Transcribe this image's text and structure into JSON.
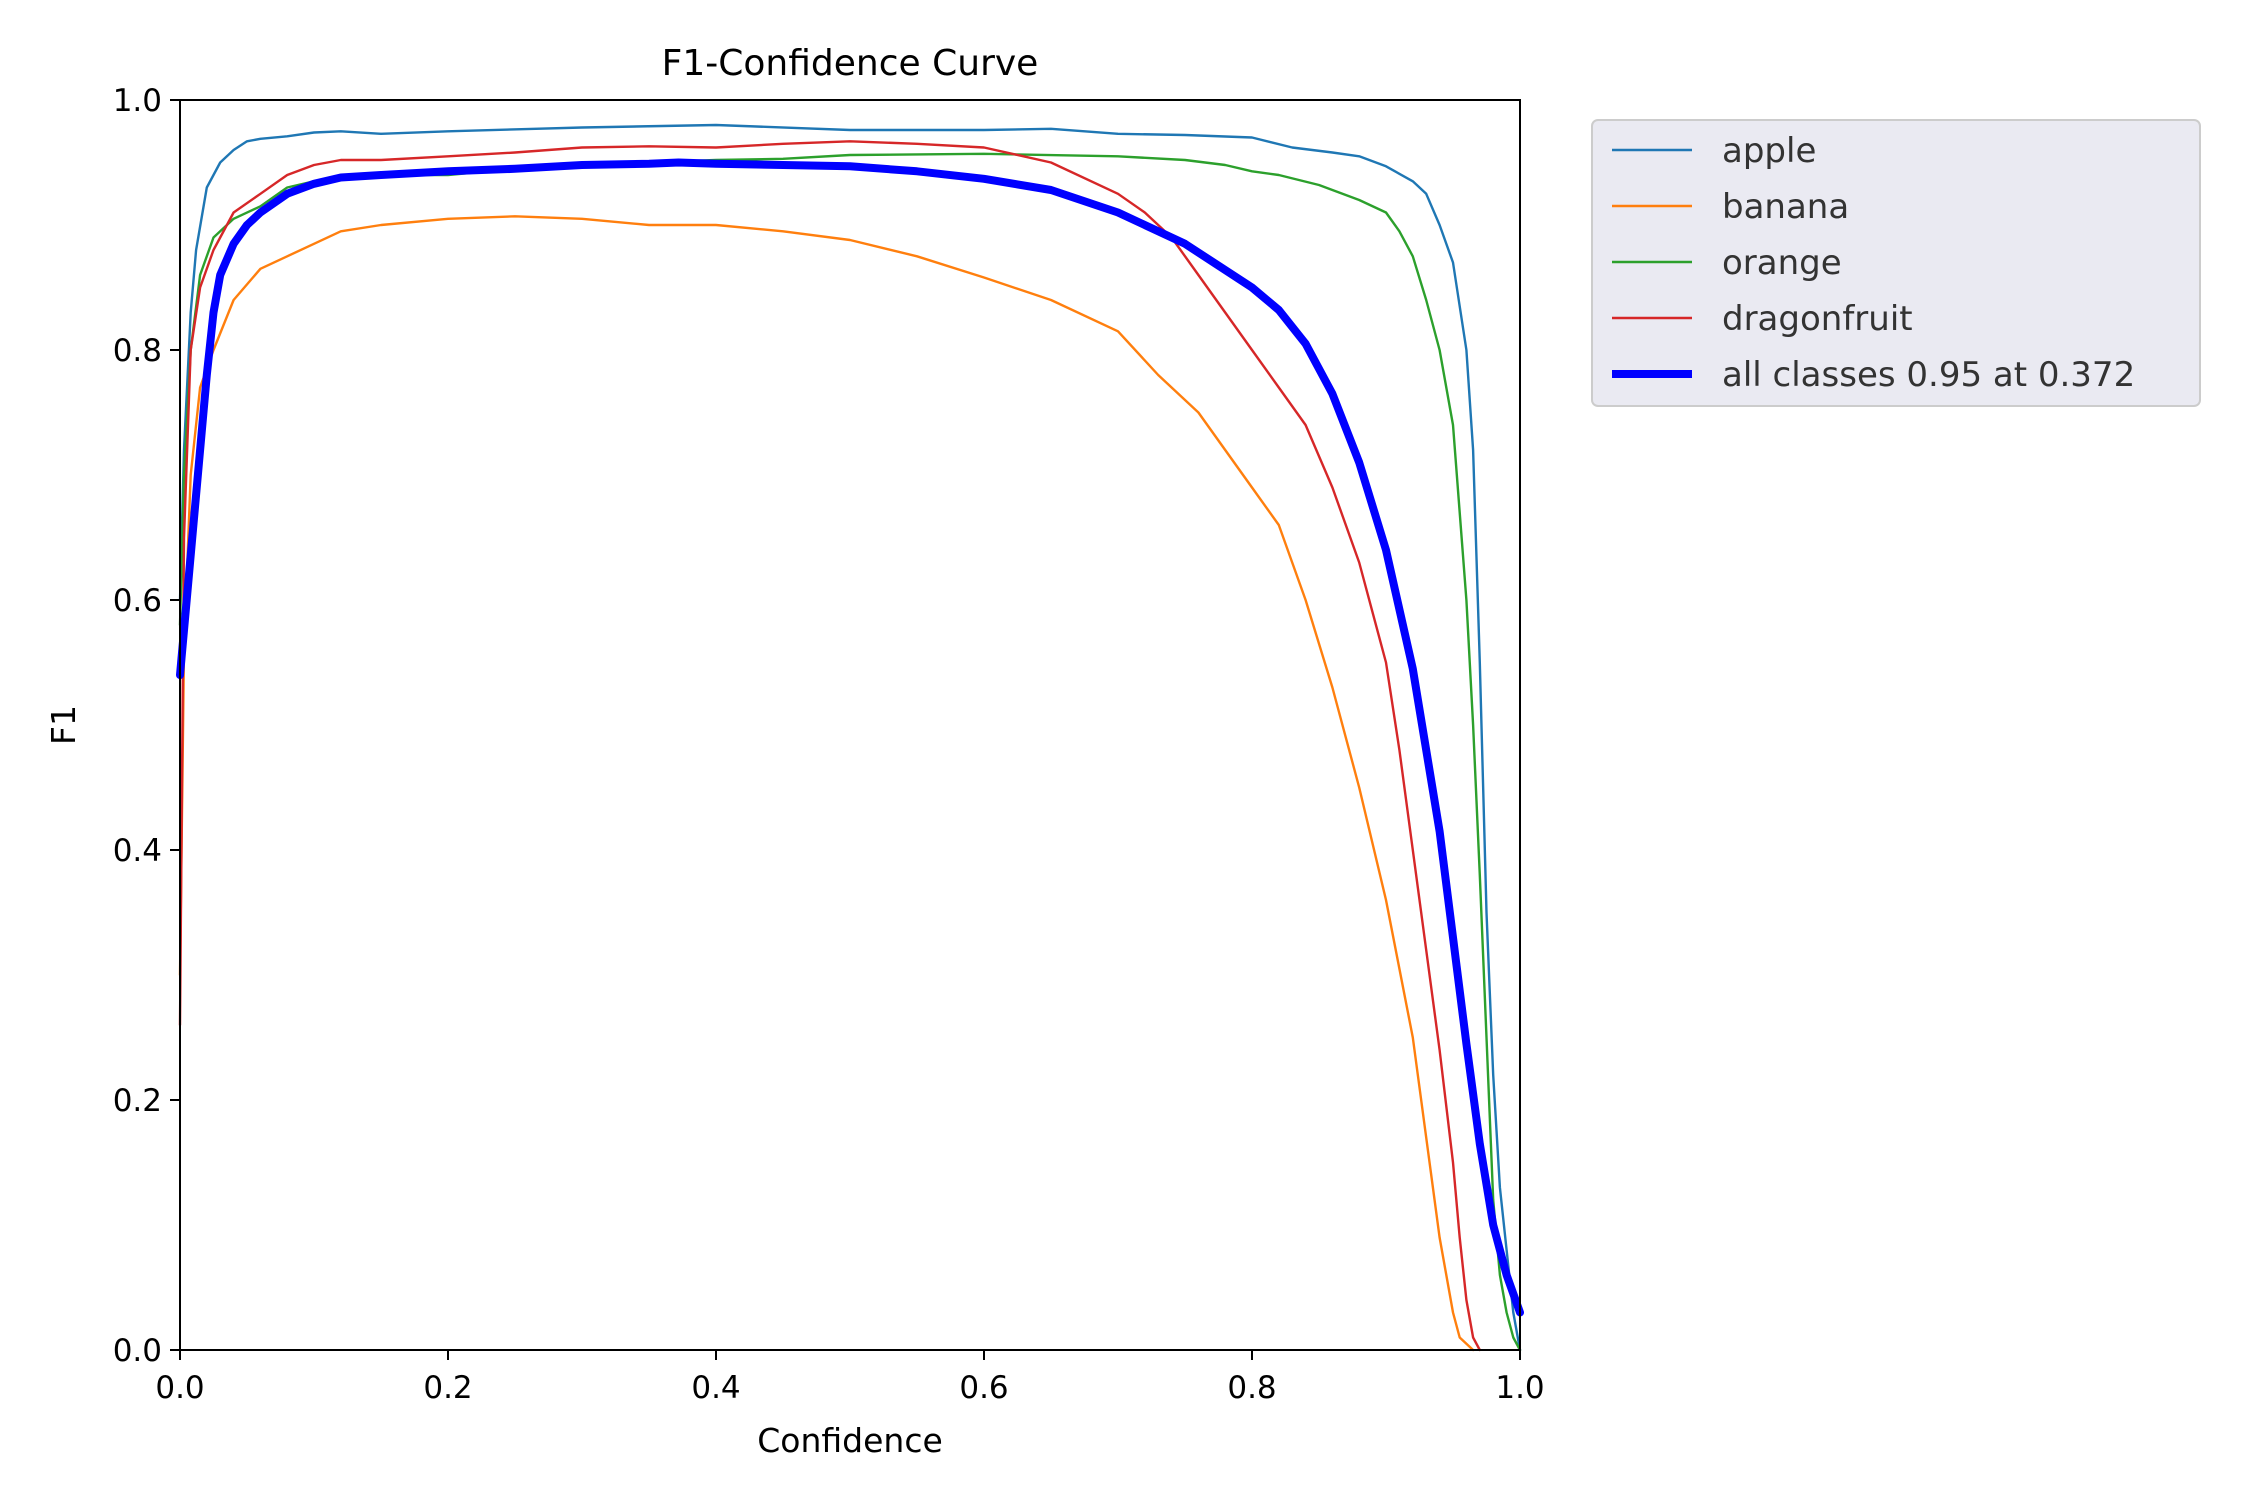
{
  "chart_data": {
    "type": "line",
    "title": "F1-Confidence Curve",
    "xlabel": "Confidence",
    "ylabel": "F1",
    "xlim": [
      0,
      1
    ],
    "ylim": [
      0,
      1
    ],
    "xticks": [
      "0.0",
      "0.2",
      "0.4",
      "0.6",
      "0.8",
      "1.0"
    ],
    "yticks": [
      "0.0",
      "0.2",
      "0.4",
      "0.6",
      "0.8",
      "1.0"
    ],
    "legend_position": "outside-top-right",
    "series": [
      {
        "name": "apple",
        "color": "#1f77b4",
        "width": "thin",
        "x": [
          0.0,
          0.003,
          0.008,
          0.012,
          0.02,
          0.03,
          0.04,
          0.05,
          0.06,
          0.08,
          0.1,
          0.12,
          0.15,
          0.2,
          0.3,
          0.4,
          0.5,
          0.6,
          0.65,
          0.7,
          0.75,
          0.8,
          0.83,
          0.86,
          0.88,
          0.9,
          0.92,
          0.93,
          0.94,
          0.95,
          0.96,
          0.965,
          0.97,
          0.975,
          0.98,
          0.985,
          0.99,
          0.995,
          1.0
        ],
        "y": [
          0.6,
          0.72,
          0.83,
          0.88,
          0.93,
          0.95,
          0.96,
          0.967,
          0.969,
          0.971,
          0.974,
          0.975,
          0.973,
          0.975,
          0.978,
          0.98,
          0.976,
          0.976,
          0.977,
          0.973,
          0.972,
          0.97,
          0.962,
          0.958,
          0.955,
          0.947,
          0.935,
          0.925,
          0.9,
          0.87,
          0.8,
          0.72,
          0.55,
          0.35,
          0.22,
          0.13,
          0.08,
          0.03,
          0.0
        ]
      },
      {
        "name": "banana",
        "color": "#ff7f0e",
        "width": "thin",
        "x": [
          0.0,
          0.003,
          0.008,
          0.015,
          0.025,
          0.04,
          0.06,
          0.08,
          0.1,
          0.12,
          0.15,
          0.2,
          0.25,
          0.3,
          0.35,
          0.4,
          0.45,
          0.5,
          0.55,
          0.6,
          0.65,
          0.7,
          0.73,
          0.76,
          0.78,
          0.8,
          0.82,
          0.84,
          0.86,
          0.88,
          0.9,
          0.92,
          0.93,
          0.94,
          0.95,
          0.955,
          0.96,
          0.965
        ],
        "y": [
          0.3,
          0.56,
          0.7,
          0.77,
          0.8,
          0.84,
          0.865,
          0.875,
          0.885,
          0.895,
          0.9,
          0.905,
          0.907,
          0.905,
          0.9,
          0.9,
          0.895,
          0.888,
          0.875,
          0.858,
          0.84,
          0.815,
          0.78,
          0.75,
          0.72,
          0.69,
          0.66,
          0.6,
          0.53,
          0.45,
          0.36,
          0.25,
          0.17,
          0.09,
          0.03,
          0.01,
          0.005,
          0.0
        ]
      },
      {
        "name": "orange",
        "color": "#2ca02c",
        "width": "thin",
        "x": [
          0.0,
          0.003,
          0.008,
          0.015,
          0.025,
          0.04,
          0.06,
          0.08,
          0.1,
          0.15,
          0.2,
          0.25,
          0.3,
          0.4,
          0.45,
          0.5,
          0.6,
          0.7,
          0.75,
          0.78,
          0.8,
          0.82,
          0.85,
          0.88,
          0.9,
          0.91,
          0.92,
          0.93,
          0.94,
          0.95,
          0.96,
          0.965,
          0.97,
          0.975,
          0.98,
          0.985,
          0.99,
          0.995,
          1.0
        ],
        "y": [
          0.58,
          0.7,
          0.8,
          0.86,
          0.89,
          0.905,
          0.915,
          0.93,
          0.935,
          0.94,
          0.94,
          0.945,
          0.948,
          0.952,
          0.953,
          0.956,
          0.957,
          0.955,
          0.952,
          0.948,
          0.943,
          0.94,
          0.932,
          0.92,
          0.91,
          0.895,
          0.875,
          0.84,
          0.8,
          0.74,
          0.6,
          0.5,
          0.38,
          0.25,
          0.12,
          0.06,
          0.03,
          0.01,
          0.0
        ]
      },
      {
        "name": "dragonfruit",
        "color": "#d62728",
        "width": "thin",
        "x": [
          0.0,
          0.003,
          0.008,
          0.015,
          0.025,
          0.04,
          0.06,
          0.08,
          0.1,
          0.12,
          0.15,
          0.2,
          0.25,
          0.3,
          0.35,
          0.4,
          0.45,
          0.5,
          0.55,
          0.6,
          0.65,
          0.7,
          0.72,
          0.74,
          0.76,
          0.78,
          0.8,
          0.82,
          0.84,
          0.86,
          0.88,
          0.9,
          0.91,
          0.92,
          0.93,
          0.94,
          0.95,
          0.955,
          0.96,
          0.965,
          0.97
        ],
        "y": [
          0.26,
          0.65,
          0.8,
          0.85,
          0.88,
          0.91,
          0.925,
          0.94,
          0.948,
          0.952,
          0.952,
          0.955,
          0.958,
          0.962,
          0.963,
          0.962,
          0.965,
          0.967,
          0.965,
          0.962,
          0.95,
          0.925,
          0.91,
          0.89,
          0.86,
          0.83,
          0.8,
          0.77,
          0.74,
          0.69,
          0.63,
          0.55,
          0.48,
          0.4,
          0.32,
          0.24,
          0.15,
          0.09,
          0.04,
          0.01,
          0.0
        ]
      },
      {
        "name": "all classes 0.95 at 0.372",
        "color": "#0000ff",
        "width": "thick",
        "x": [
          0.0,
          0.005,
          0.01,
          0.015,
          0.02,
          0.025,
          0.03,
          0.04,
          0.05,
          0.06,
          0.08,
          0.1,
          0.12,
          0.15,
          0.2,
          0.25,
          0.3,
          0.35,
          0.372,
          0.4,
          0.45,
          0.5,
          0.55,
          0.6,
          0.65,
          0.7,
          0.75,
          0.8,
          0.82,
          0.84,
          0.86,
          0.88,
          0.9,
          0.92,
          0.94,
          0.95,
          0.96,
          0.97,
          0.98,
          0.99,
          1.0
        ],
        "y": [
          0.54,
          0.6,
          0.66,
          0.72,
          0.78,
          0.83,
          0.86,
          0.885,
          0.9,
          0.91,
          0.925,
          0.933,
          0.938,
          0.94,
          0.943,
          0.945,
          0.948,
          0.949,
          0.95,
          0.949,
          0.948,
          0.947,
          0.943,
          0.937,
          0.928,
          0.91,
          0.885,
          0.85,
          0.832,
          0.805,
          0.765,
          0.71,
          0.64,
          0.545,
          0.415,
          0.33,
          0.245,
          0.165,
          0.1,
          0.06,
          0.03
        ]
      }
    ]
  }
}
